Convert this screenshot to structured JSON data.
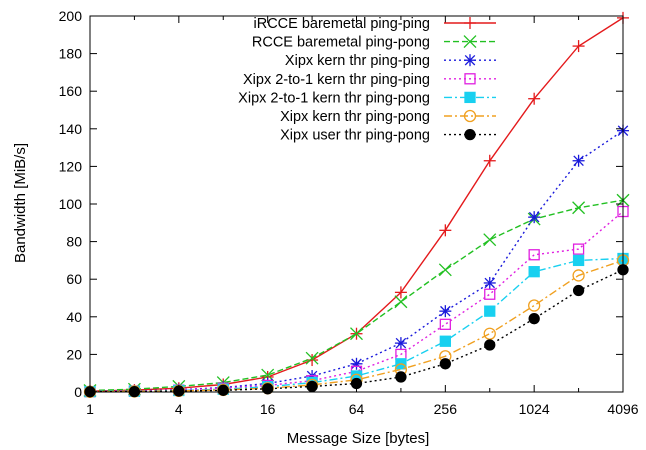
{
  "chart_data": {
    "type": "line",
    "title": "",
    "xlabel": "Message Size [bytes]",
    "ylabel": "Bandwidth [MiB/s]",
    "x_scale": "log2",
    "xlim": [
      1,
      4096
    ],
    "ylim": [
      0,
      200
    ],
    "x_ticks": [
      1,
      4,
      16,
      64,
      256,
      1024,
      4096
    ],
    "y_ticks": [
      0,
      20,
      40,
      60,
      80,
      100,
      120,
      140,
      160,
      180,
      200
    ],
    "grid": false,
    "legend_position": "top-right",
    "x": [
      1,
      2,
      4,
      8,
      16,
      32,
      64,
      128,
      256,
      512,
      1024,
      2048,
      4096
    ],
    "series": [
      {
        "name": "iRCCE baremetal ping-ping",
        "color": "#e41a1c",
        "marker": "plus",
        "dash": "solid",
        "values": [
          0.5,
          1,
          2,
          4,
          8,
          17,
          31,
          53,
          86,
          123,
          156,
          184,
          199
        ]
      },
      {
        "name": "RCCE baremetal ping-pong",
        "color": "#22c022",
        "marker": "x",
        "dash": "dashed",
        "values": [
          0.8,
          1.5,
          3,
          5,
          9,
          18,
          31,
          48,
          65,
          81,
          92,
          98,
          102
        ]
      },
      {
        "name": "Xipx kern thr ping-ping",
        "color": "#1a1adb",
        "marker": "star",
        "dash": "dotted",
        "values": [
          0.3,
          0.6,
          1.2,
          2.4,
          4.5,
          8.5,
          15,
          26,
          43,
          58,
          93,
          123,
          139
        ]
      },
      {
        "name": "Xipx 2-to-1 kern thr ping-ping",
        "color": "#e020e0",
        "marker": "open-square",
        "dash": "dotted",
        "values": [
          0.2,
          0.5,
          1,
          2,
          3.5,
          6,
          11,
          20,
          36,
          52,
          73,
          76,
          96
        ]
      },
      {
        "name": "Xipx 2-to-1 kern thr ping-pong",
        "color": "#18d0f0",
        "marker": "filled-square",
        "dash": "dashdot",
        "values": [
          0.2,
          0.4,
          0.8,
          1.5,
          2.8,
          5,
          8.5,
          15,
          27,
          43,
          64,
          70,
          71
        ]
      },
      {
        "name": "Xipx kern thr ping-pong",
        "color": "#f0a020",
        "marker": "open-circle",
        "dash": "dashdot",
        "values": [
          0.1,
          0.3,
          0.6,
          1.1,
          2,
          3.8,
          6.5,
          12,
          19,
          31,
          46,
          62,
          70
        ]
      },
      {
        "name": "Xipx user thr ping-pong",
        "color": "#000000",
        "marker": "filled-circle",
        "dash": "dotted",
        "values": [
          0.1,
          0.2,
          0.5,
          0.9,
          1.7,
          3,
          4.5,
          8,
          15,
          25,
          39,
          54,
          65
        ]
      }
    ]
  }
}
